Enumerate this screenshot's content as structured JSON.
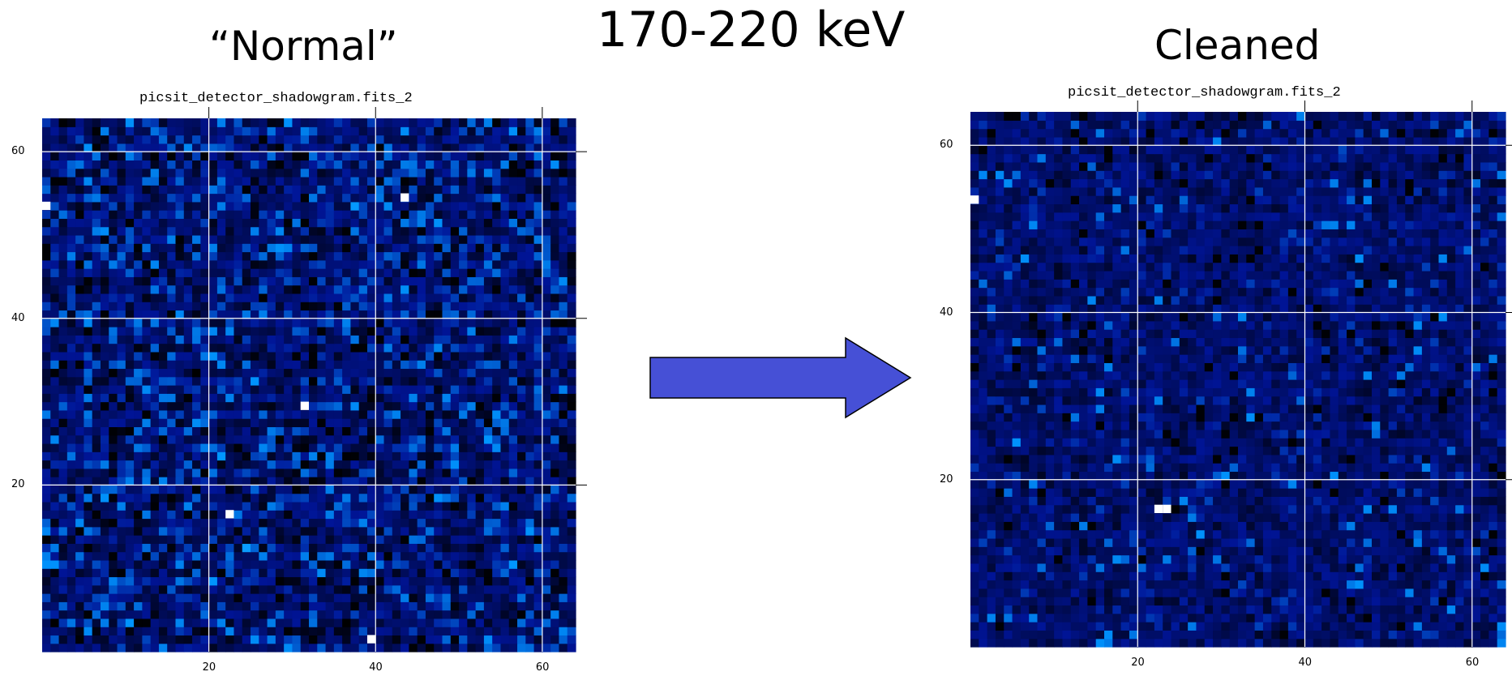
{
  "header": {
    "energy_band": "170-220 keV",
    "left_label": "“Normal”",
    "right_label": "Cleaned"
  },
  "panels": [
    {
      "id": "normal",
      "plot_title": "picsit_detector_shadowgram.fits_2",
      "x_ticks": [
        "20",
        "40",
        "60"
      ],
      "y_ticks": [
        "20",
        "40",
        "60"
      ],
      "seed": 7,
      "base_brightness": 0.42,
      "spread": 0.32
    },
    {
      "id": "cleaned",
      "plot_title": "picsit_detector_shadowgram.fits_2",
      "x_ticks": [
        "20",
        "40",
        "60"
      ],
      "y_ticks": [
        "20",
        "40",
        "60"
      ],
      "seed": 23,
      "base_brightness": 0.4,
      "spread": 0.2
    }
  ],
  "chart_data": [
    {
      "type": "heatmap",
      "title": "picsit_detector_shadowgram.fits_2",
      "xlim": [
        0,
        64
      ],
      "ylim": [
        0,
        64
      ],
      "grid": true,
      "grid_positions": [
        20,
        40,
        60
      ],
      "x_ticks": [
        20,
        40,
        60
      ],
      "y_ticks": [
        20,
        40,
        60
      ],
      "colormap": "black-blue-white",
      "hot_pixels": [
        [
          0.5,
          53.5
        ],
        [
          43.5,
          54.5
        ],
        [
          22.5,
          16.5
        ],
        [
          31.5,
          29.5
        ],
        [
          39.5,
          1.5
        ]
      ]
    },
    {
      "type": "heatmap",
      "title": "picsit_detector_shadowgram.fits_2",
      "xlim": [
        0,
        64
      ],
      "ylim": [
        0,
        64
      ],
      "grid": true,
      "grid_positions": [
        20,
        40,
        60
      ],
      "x_ticks": [
        20,
        40,
        60
      ],
      "y_ticks": [
        20,
        40,
        60
      ],
      "colormap": "black-blue-white",
      "hot_pixels": [
        [
          0.5,
          53.5
        ],
        [
          22.5,
          16.5
        ],
        [
          23.5,
          16.5
        ]
      ]
    }
  ],
  "colors": {
    "arrow_fill": "#4650d6",
    "arrow_stroke": "#000000",
    "grid_line": "#ffffff",
    "axis": "#000000"
  }
}
